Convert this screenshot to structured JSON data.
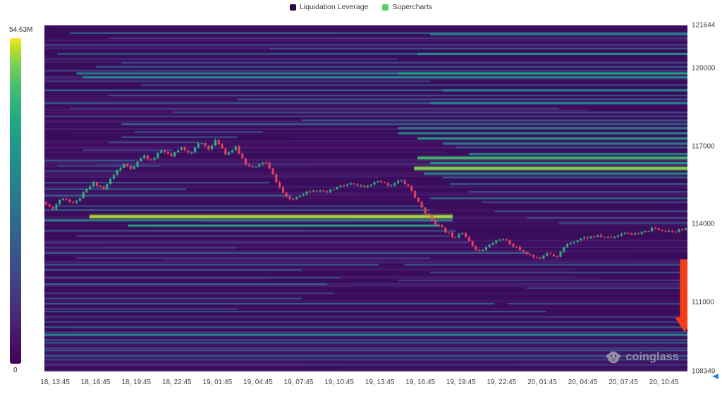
{
  "legend": {
    "items": [
      {
        "label": "Liquidation Leverage",
        "color": "#2c0b50"
      },
      {
        "label": "Supercharts",
        "color": "#56d06a"
      }
    ]
  },
  "colorbar": {
    "max_label": "54.63M",
    "min_label": "0"
  },
  "watermark": {
    "text": "coinglass"
  },
  "chart_data": {
    "type": "heatmap",
    "title": "",
    "y_axis": {
      "min": 108349,
      "max": 121644,
      "ticks": [
        121644,
        120000,
        117000,
        114000,
        111000,
        108349
      ]
    },
    "x_axis": {
      "labels": [
        "18, 13:45",
        "18, 16:45",
        "18, 19:45",
        "18, 22:45",
        "19, 01:45",
        "19, 04:45",
        "19, 07:45",
        "19, 10:45",
        "19, 13:45",
        "19, 16:45",
        "19, 19:45",
        "19, 22:45",
        "20, 01:45",
        "20, 04:45",
        "20, 07:45",
        "20, 10:45"
      ]
    },
    "colorscale": {
      "max_value": "54.63M",
      "min_value": "0",
      "stops": [
        [
          0.0,
          "#440154"
        ],
        [
          0.13,
          "#482475"
        ],
        [
          0.25,
          "#414487"
        ],
        [
          0.38,
          "#355f8d"
        ],
        [
          0.5,
          "#2a788e"
        ],
        [
          0.63,
          "#21918c"
        ],
        [
          0.75,
          "#22a884"
        ],
        [
          0.85,
          "#44bf70"
        ],
        [
          0.92,
          "#7ad151"
        ],
        [
          0.97,
          "#bddf26"
        ],
        [
          1.0,
          "#fde725"
        ]
      ]
    },
    "plot_background": "#3a0c5c",
    "heatmap_bands": [
      [
        121350,
        0.04,
        1,
        0.45
      ],
      [
        121300,
        0.6,
        1,
        0.55
      ],
      [
        121150,
        0.1,
        1,
        0.22
      ],
      [
        120900,
        0.0,
        1,
        0.28
      ],
      [
        120750,
        0.35,
        1,
        0.35
      ],
      [
        120550,
        0.02,
        1,
        0.5
      ],
      [
        120550,
        0.58,
        1,
        0.65
      ],
      [
        120350,
        0.0,
        0.55,
        0.2
      ],
      [
        120200,
        0.12,
        1,
        0.3
      ],
      [
        120050,
        0.08,
        1,
        0.42
      ],
      [
        119900,
        0.0,
        1,
        0.3
      ],
      [
        119800,
        0.05,
        1,
        0.55
      ],
      [
        119800,
        0.55,
        1,
        0.72
      ],
      [
        119650,
        0.06,
        1,
        0.6
      ],
      [
        119500,
        0.0,
        0.6,
        0.25
      ],
      [
        119350,
        0.15,
        1,
        0.35
      ],
      [
        119150,
        0.0,
        1,
        0.48
      ],
      [
        119150,
        0.62,
        1,
        0.62
      ],
      [
        118950,
        0.1,
        1,
        0.3
      ],
      [
        118800,
        0.3,
        1,
        0.38
      ],
      [
        118650,
        0.0,
        1,
        0.45
      ],
      [
        118650,
        0.6,
        1,
        0.58
      ],
      [
        118450,
        0.04,
        0.8,
        0.24
      ],
      [
        118300,
        0.2,
        1,
        0.32
      ],
      [
        118150,
        0.0,
        1,
        0.28
      ],
      [
        118000,
        0.4,
        1,
        0.4
      ],
      [
        117850,
        0.12,
        1,
        0.48
      ],
      [
        117700,
        0.55,
        1,
        0.52
      ],
      [
        117550,
        0.14,
        0.34,
        0.3
      ],
      [
        117500,
        0.55,
        1,
        0.62
      ],
      [
        117350,
        0.12,
        0.3,
        0.38
      ],
      [
        117300,
        0.58,
        1,
        0.7
      ],
      [
        117150,
        0.1,
        0.24,
        0.32
      ],
      [
        117100,
        0.62,
        1,
        0.55
      ],
      [
        116950,
        0.64,
        1,
        0.45
      ],
      [
        116850,
        0.06,
        0.2,
        0.28
      ],
      [
        116700,
        0.66,
        1,
        0.56
      ],
      [
        116550,
        0.58,
        1,
        0.85
      ],
      [
        116450,
        0.0,
        0.14,
        0.4
      ],
      [
        116350,
        0.6,
        1,
        0.7
      ],
      [
        116250,
        0.02,
        0.18,
        0.3
      ],
      [
        116150,
        0.575,
        1,
        0.92
      ],
      [
        116050,
        0.0,
        0.12,
        0.35
      ],
      [
        115950,
        0.59,
        1,
        0.6
      ],
      [
        115800,
        0.62,
        1,
        0.45
      ],
      [
        115600,
        0.0,
        0.35,
        0.38
      ],
      [
        115550,
        0.63,
        1,
        0.42
      ],
      [
        115350,
        0.0,
        0.22,
        0.42
      ],
      [
        115250,
        0.66,
        1,
        0.35
      ],
      [
        115100,
        0.0,
        0.385,
        0.45
      ],
      [
        115000,
        0.6,
        1,
        0.5
      ],
      [
        114850,
        0.68,
        1,
        0.3
      ],
      [
        114700,
        0.02,
        0.59,
        0.3
      ],
      [
        114550,
        0.0,
        0.6,
        0.4
      ],
      [
        114500,
        0.7,
        1,
        0.38
      ],
      [
        114300,
        0.07,
        0.635,
        0.95
      ],
      [
        114250,
        0.75,
        1,
        0.3
      ],
      [
        114150,
        0.0,
        0.635,
        0.55
      ],
      [
        114050,
        0.8,
        1,
        0.35
      ],
      [
        113950,
        0.13,
        0.615,
        0.75
      ],
      [
        113750,
        0.0,
        0.64,
        0.35
      ],
      [
        113550,
        0.05,
        0.63,
        0.25
      ],
      [
        113300,
        0.0,
        0.66,
        0.28
      ],
      [
        113100,
        0.0,
        0.3,
        0.28
      ],
      [
        112900,
        0.0,
        0.755,
        0.45
      ],
      [
        112700,
        0.05,
        0.6,
        0.25
      ],
      [
        112450,
        0.0,
        0.52,
        0.42
      ],
      [
        112450,
        0.56,
        1,
        0.4
      ],
      [
        112250,
        0.0,
        0.4,
        0.35
      ],
      [
        112150,
        0.6,
        1,
        0.3
      ],
      [
        111950,
        0.0,
        0.46,
        0.3
      ],
      [
        111850,
        0.55,
        1,
        0.25
      ],
      [
        111700,
        0.0,
        0.44,
        0.48
      ],
      [
        111550,
        0.75,
        1,
        0.28
      ],
      [
        111350,
        0.0,
        0.45,
        0.25
      ],
      [
        111150,
        0.0,
        0.4,
        0.3
      ],
      [
        110950,
        0.0,
        0.7,
        0.42
      ],
      [
        110950,
        0.72,
        1,
        0.3
      ],
      [
        110750,
        0.0,
        0.3,
        0.25
      ],
      [
        110650,
        0.0,
        0.78,
        0.35
      ],
      [
        110450,
        0.0,
        1,
        0.22
      ],
      [
        110250,
        0.0,
        1,
        0.3
      ],
      [
        110050,
        0.0,
        1,
        0.4
      ],
      [
        109850,
        0.0,
        1,
        0.3
      ],
      [
        109750,
        0.0,
        1,
        0.55
      ],
      [
        109550,
        0.0,
        1,
        0.35
      ],
      [
        109450,
        0.0,
        1,
        0.45
      ],
      [
        109250,
        0.0,
        1,
        0.28
      ],
      [
        109150,
        0.0,
        1,
        0.32
      ],
      [
        108950,
        0.0,
        1,
        0.4
      ],
      [
        108800,
        0.0,
        1,
        0.3
      ],
      [
        108600,
        0.0,
        1,
        0.22
      ]
    ],
    "price_line": {
      "candle_count": 190,
      "up_color": "#2ebd85",
      "down_color": "#f6465d",
      "wiggle": 110,
      "seed": 11,
      "anchors": [
        [
          0.0,
          114850
        ],
        [
          0.015,
          114600
        ],
        [
          0.03,
          115050
        ],
        [
          0.05,
          114800
        ],
        [
          0.065,
          115250
        ],
        [
          0.08,
          115600
        ],
        [
          0.095,
          115350
        ],
        [
          0.11,
          115900
        ],
        [
          0.125,
          116300
        ],
        [
          0.14,
          116100
        ],
        [
          0.155,
          116650
        ],
        [
          0.17,
          116450
        ],
        [
          0.185,
          116850
        ],
        [
          0.2,
          116600
        ],
        [
          0.215,
          116950
        ],
        [
          0.23,
          116750
        ],
        [
          0.245,
          117150
        ],
        [
          0.26,
          116900
        ],
        [
          0.27,
          117250
        ],
        [
          0.285,
          116700
        ],
        [
          0.3,
          116950
        ],
        [
          0.315,
          116350
        ],
        [
          0.33,
          116150
        ],
        [
          0.345,
          116450
        ],
        [
          0.36,
          115800
        ],
        [
          0.372,
          115250
        ],
        [
          0.385,
          114900
        ],
        [
          0.4,
          115150
        ],
        [
          0.42,
          115350
        ],
        [
          0.44,
          115200
        ],
        [
          0.46,
          115450
        ],
        [
          0.48,
          115550
        ],
        [
          0.5,
          115400
        ],
        [
          0.52,
          115650
        ],
        [
          0.54,
          115500
        ],
        [
          0.555,
          115700
        ],
        [
          0.57,
          115450
        ],
        [
          0.582,
          114900
        ],
        [
          0.595,
          114450
        ],
        [
          0.61,
          114050
        ],
        [
          0.625,
          113750
        ],
        [
          0.64,
          113500
        ],
        [
          0.652,
          113750
        ],
        [
          0.665,
          113250
        ],
        [
          0.68,
          112950
        ],
        [
          0.695,
          113200
        ],
        [
          0.71,
          113450
        ],
        [
          0.725,
          113300
        ],
        [
          0.74,
          113050
        ],
        [
          0.755,
          112850
        ],
        [
          0.77,
          112650
        ],
        [
          0.785,
          112950
        ],
        [
          0.8,
          112750
        ],
        [
          0.815,
          113250
        ],
        [
          0.835,
          113450
        ],
        [
          0.86,
          113550
        ],
        [
          0.885,
          113500
        ],
        [
          0.905,
          113700
        ],
        [
          0.925,
          113600
        ],
        [
          0.95,
          113850
        ],
        [
          0.975,
          113750
        ],
        [
          1.0,
          113800
        ]
      ]
    },
    "texture": {
      "count": 150,
      "seed": 5,
      "min_intensity": 0.04,
      "max_intensity": 0.15
    },
    "annotation_arrow": {
      "x_frac": 0.996,
      "price_top": 112650,
      "price_tip": 109850,
      "color": "#f23d17"
    },
    "axis_marker_color": "#2c7df6"
  }
}
